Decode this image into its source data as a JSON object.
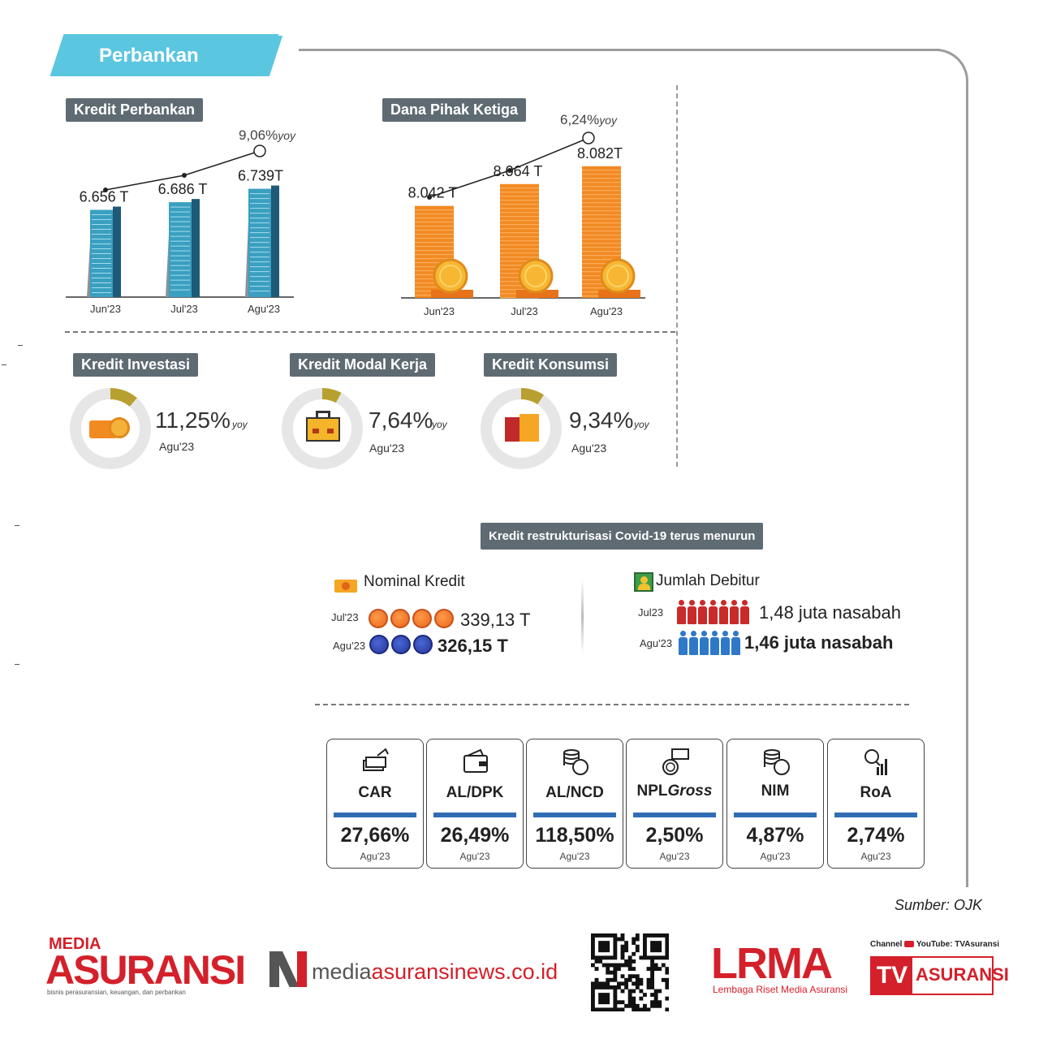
{
  "header": {
    "title": "Perbankan"
  },
  "kredit_perbankan": {
    "title": "Kredit Perbankan",
    "yoy_value": "9,06%",
    "yoy_suffix": "yoy"
  },
  "dpk": {
    "title": "Dana Pihak Ketiga",
    "yoy_value": "6,24%",
    "yoy_suffix": "yoy"
  },
  "chart_data": [
    {
      "type": "bar",
      "title": "Kredit Perbankan",
      "categories": [
        "Jun'23",
        "Jul'23",
        "Agu'23"
      ],
      "values": [
        6656,
        6686,
        6739
      ],
      "value_labels": [
        "6.656 T",
        "6.686 T",
        "6.739T"
      ],
      "annotation": "9,06% yoy"
    },
    {
      "type": "bar",
      "title": "Dana Pihak Ketiga",
      "categories": [
        "Jun'23",
        "Jul'23",
        "Agu'23"
      ],
      "values": [
        8042,
        8064,
        8082
      ],
      "value_labels": [
        "8.042 T",
        "8.064 T",
        "8.082T"
      ],
      "annotation": "6,24% yoy"
    }
  ],
  "segments": [
    {
      "title": "Kredit Investasi",
      "value": "11,25%",
      "suffix": "yoy",
      "date": "Agu'23",
      "share": 0.1125
    },
    {
      "title": "Kredit Modal Kerja",
      "value": "7,64%",
      "suffix": "yoy",
      "date": "Agu'23",
      "share": 0.0764
    },
    {
      "title": "Kredit Konsumsi",
      "value": "9,34%",
      "suffix": "yoy",
      "date": "Agu'23",
      "share": 0.0934
    }
  ],
  "restrukturisasi": {
    "title": "Kredit restrukturisasi Covid-19 terus menurun",
    "nominal": {
      "label": "Nominal Kredit",
      "rows": [
        {
          "period": "Jul'23",
          "value": "339,13 T"
        },
        {
          "period": "Agu'23",
          "value": "326,15 T"
        }
      ]
    },
    "debitur": {
      "label": "Jumlah Debitur",
      "rows": [
        {
          "period": "Jul23",
          "value": "1,48 juta nasabah"
        },
        {
          "period": "Agu'23",
          "value": "1,46 juta nasabah"
        }
      ]
    }
  },
  "metrics": [
    {
      "name": "CAR",
      "value": "27,66%",
      "date": "Agu'23"
    },
    {
      "name": "AL/DPK",
      "value": "26,49%",
      "date": "Agu'23"
    },
    {
      "name": "AL/NCD",
      "value": "118,50%",
      "date": "Agu'23"
    },
    {
      "name": "NPL",
      "name_suffix": "Gross",
      "value": "2,50%",
      "date": "Agu'23"
    },
    {
      "name": "NIM",
      "value": "4,87%",
      "date": "Agu'23"
    },
    {
      "name": "RoA",
      "value": "2,74%",
      "date": "Agu'23"
    }
  ],
  "source": "Sumber: OJK",
  "footer": {
    "media_top": "MEDIA",
    "media_main": "ASURANSI",
    "media_tagline": "bisnis perasuransian, keuangan, dan perbankan",
    "site_prefix": "media",
    "site_suffix": "asuransinews.co.id",
    "lrma": "LRMA",
    "lrma_sub": "Lembaga Riset Media Asuransi",
    "tv_channel": "Channel",
    "tv_youtube": "YouTube: TVAsuransi",
    "tv_tv": "TV",
    "tv_main": "ASURANSI"
  },
  "colors": {
    "accent": "#5bc6e0",
    "pill": "#5f6b73",
    "orange": "#f28a22",
    "blue_bar": "#2f6db5",
    "red": "#c92a2a"
  }
}
